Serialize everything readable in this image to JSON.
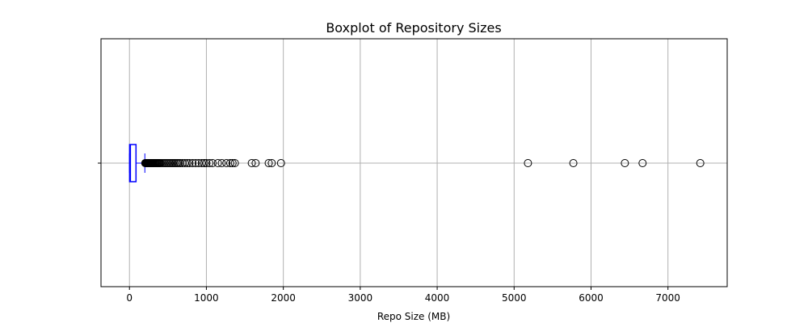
{
  "chart_data": {
    "type": "boxplot",
    "orientation": "horizontal",
    "title": "Boxplot of Repository Sizes",
    "xlabel": "Repo Size (MB)",
    "ylabel": "",
    "xlim": [
      -370,
      7770
    ],
    "x_ticks": [
      0,
      1000,
      2000,
      3000,
      4000,
      5000,
      6000,
      7000
    ],
    "x_tick_labels": [
      "0",
      "1000",
      "2000",
      "3000",
      "4000",
      "5000",
      "6000",
      "7000"
    ],
    "grid": true,
    "box": {
      "whisker_low": 0,
      "q1": 2,
      "median": 12,
      "q3": 85,
      "whisker_high": 200
    },
    "outliers": [
      205,
      210,
      215,
      220,
      225,
      230,
      235,
      240,
      245,
      250,
      255,
      260,
      265,
      270,
      275,
      280,
      285,
      290,
      295,
      300,
      310,
      320,
      330,
      340,
      350,
      360,
      370,
      380,
      390,
      400,
      420,
      440,
      460,
      480,
      500,
      520,
      540,
      560,
      580,
      600,
      620,
      640,
      660,
      690,
      720,
      750,
      780,
      820,
      860,
      900,
      940,
      970,
      1000,
      1040,
      1080,
      1150,
      1200,
      1260,
      1310,
      1340,
      1370,
      1590,
      1640,
      1810,
      1850,
      1970,
      5180,
      5770,
      6440,
      6670,
      7420
    ],
    "colors": {
      "box": "#0000ff",
      "median": "#0000ff",
      "whisker": "#0000ff",
      "outlier_edge": "#000000",
      "grid": "#b0b0b0",
      "frame": "#000000"
    }
  }
}
